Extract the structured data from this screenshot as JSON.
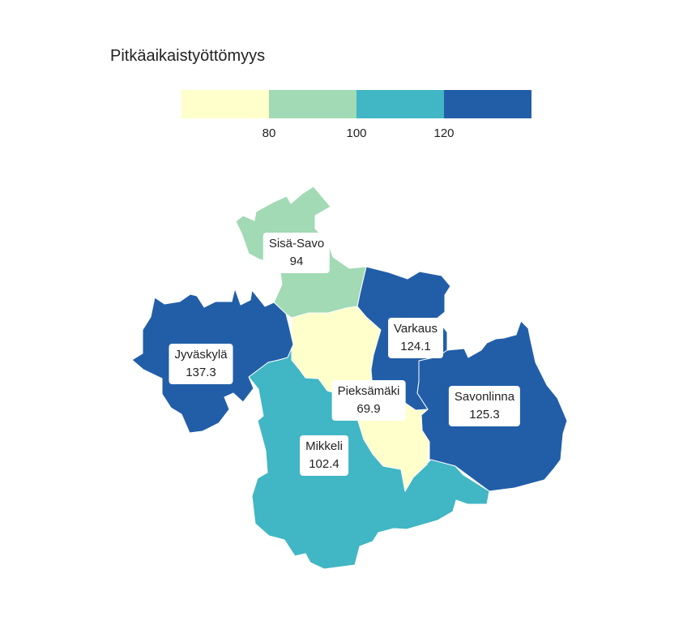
{
  "title": "Pitkäaikaistyöttömyys",
  "legend": {
    "colors": [
      "#ffffcc",
      "#a1dab4",
      "#41b6c4",
      "#225ea8"
    ],
    "ticks": [
      "80",
      "100",
      "120"
    ]
  },
  "regions": [
    {
      "name": "Sisä-Savo",
      "value": "94",
      "color": "#a1dab4"
    },
    {
      "name": "Varkaus",
      "value": "124.1",
      "color": "#225ea8"
    },
    {
      "name": "Jyväskylä",
      "value": "137.3",
      "color": "#225ea8"
    },
    {
      "name": "Pieksämäki",
      "value": "69.9",
      "color": "#ffffcc"
    },
    {
      "name": "Savonlinna",
      "value": "125.3",
      "color": "#225ea8"
    },
    {
      "name": "Mikkeli",
      "value": "102.4",
      "color": "#41b6c4"
    }
  ]
}
